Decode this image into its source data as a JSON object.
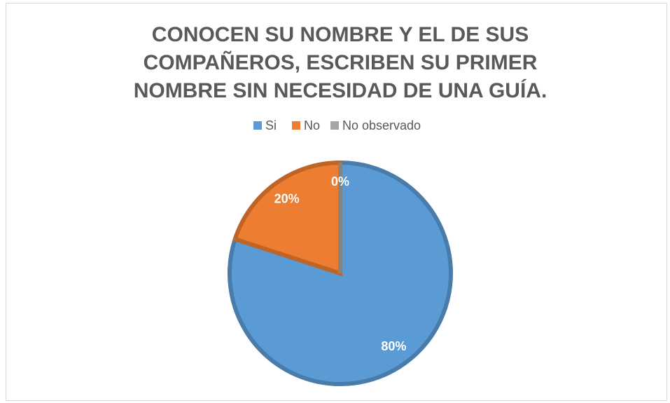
{
  "chart_data": {
    "type": "pie",
    "title": "CONOCEN SU NOMBRE Y EL DE SUS COMPAÑEROS, ESCRIBEN SU PRIMER NOMBRE SIN NECESIDAD DE UNA GUÍA.",
    "categories": [
      "Si",
      "No",
      "No observado"
    ],
    "values": [
      80,
      20,
      0
    ],
    "value_labels": [
      "80%",
      "20%",
      "0%"
    ],
    "colors": [
      "#5b9bd5",
      "#ed7d31",
      "#a5a5a5"
    ],
    "legend": "top"
  }
}
